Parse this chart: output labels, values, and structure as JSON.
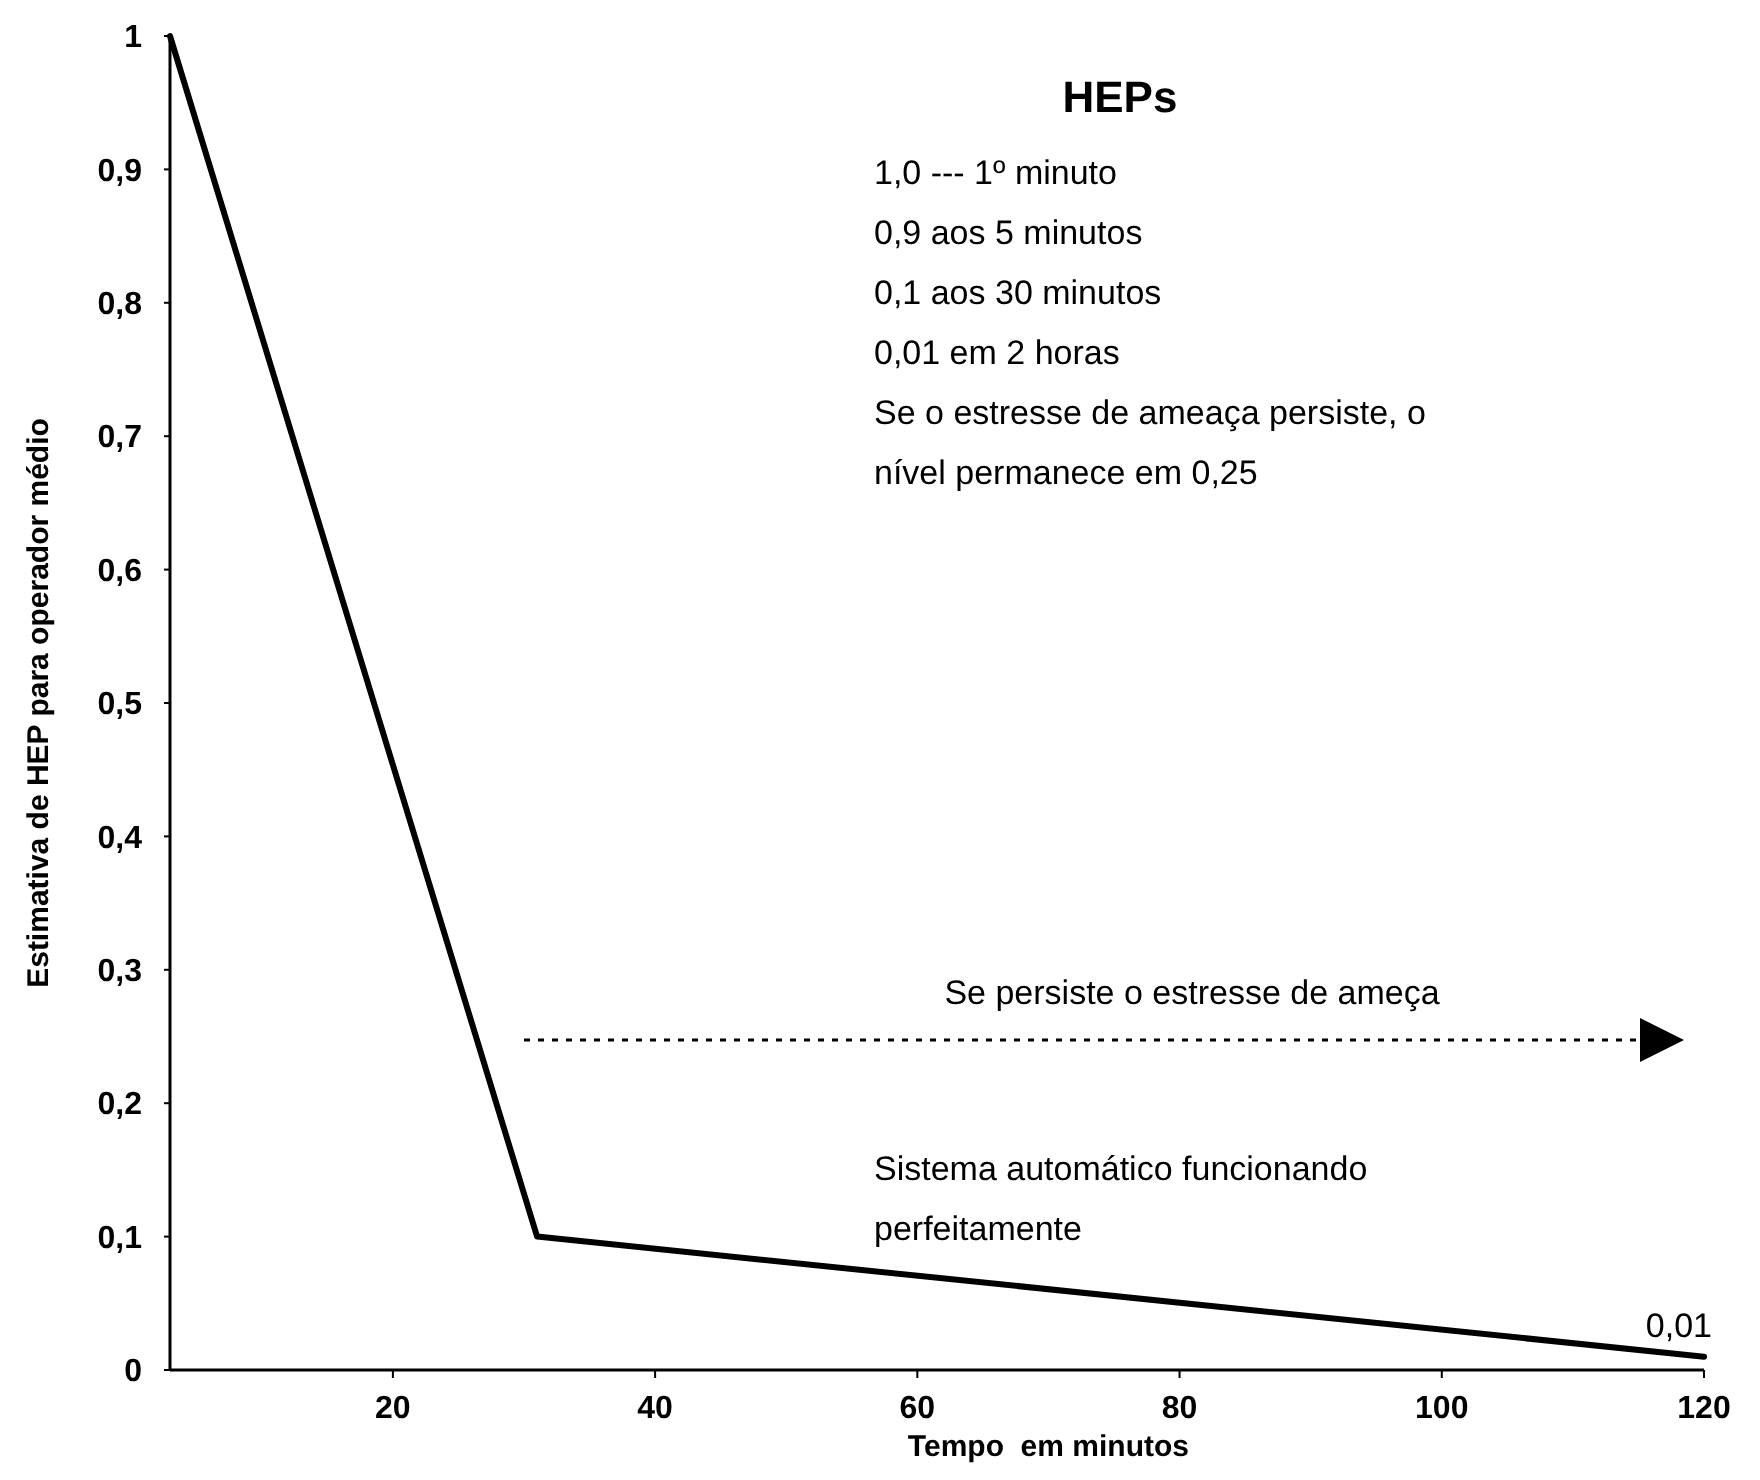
{
  "chart_data": {
    "type": "line",
    "xlabel": "Tempo  em minutos",
    "ylabel": "Estimativa de HEP para operador médio",
    "xlim": [
      3,
      120
    ],
    "ylim": [
      0,
      1
    ],
    "xticks": [
      20,
      40,
      60,
      80,
      100,
      120
    ],
    "yticks": [
      0,
      {
        "value": 0.1,
        "label": "0,1"
      },
      {
        "value": 0.2,
        "label": "0,2"
      },
      {
        "value": 0.3,
        "label": "0,3"
      },
      {
        "value": 0.4,
        "label": "0,4"
      },
      {
        "value": 0.5,
        "label": "0,5"
      },
      {
        "value": 0.6,
        "label": "0,6"
      },
      {
        "value": 0.7,
        "label": "0,7"
      },
      {
        "value": 0.8,
        "label": "0,8"
      },
      {
        "value": 0.9,
        "label": "0,9"
      },
      1
    ],
    "grid": false,
    "marker": "none",
    "series": [
      {
        "color": "#000000",
        "x": [
          3,
          31,
          120
        ],
        "values": [
          1,
          0.1,
          0.01
        ],
        "line_style": "solid"
      }
    ],
    "annotations": [
      "HEPs",
      "1,0  --- 1º minuto",
      "0,9  aos 5 minutos",
      "0,1  aos 30 minutos",
      "0,01 em 2 horas",
      "Se o estresse de ameaça persiste, o",
      "nível permanece em 0,25",
      "Se persiste o estresse de ameça",
      "Sistema automático funcionando perfeitamente",
      {
        "text": "0,01",
        "x": 120,
        "y": 0.01
      }
    ]
  }
}
